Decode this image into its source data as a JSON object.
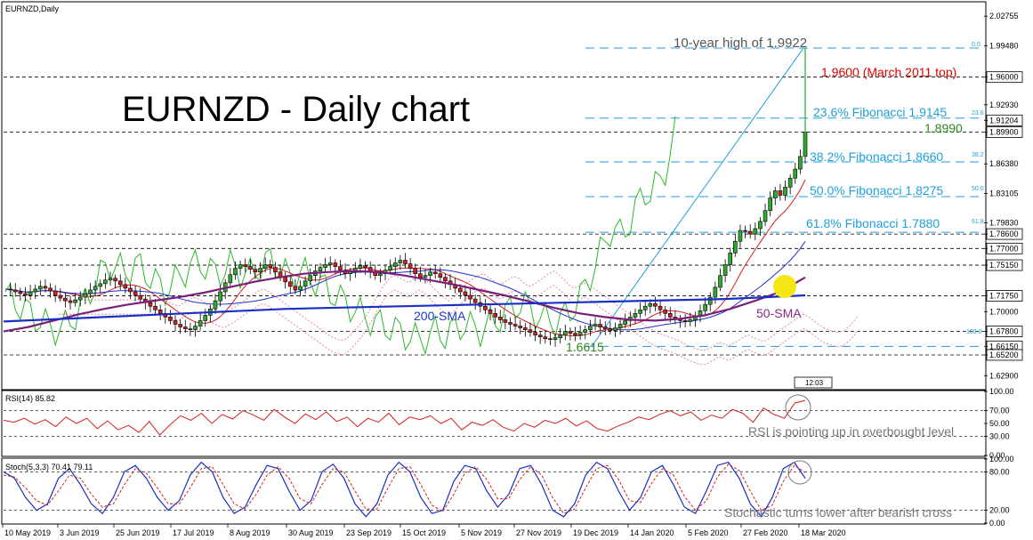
{
  "chart_data": {
    "type": "line",
    "symbol_label": "EURNZD,Daily",
    "title": "EURNZD - Daily chart",
    "price_axis": {
      "ylim": [
        1.6135,
        2.0435
      ],
      "ticks": [
        "2.02755",
        "1.99480",
        "1.96000",
        "1.92930",
        "1.91204",
        "1.89900",
        "1.86380",
        "1.83105",
        "1.79830",
        "1.78600",
        "1.77000",
        "1.75150",
        "1.71750",
        "1.70000",
        "1.67800",
        "1.66150",
        "1.65200",
        "1.62900"
      ],
      "boxed_levels": [
        "1.96000",
        "1.91204",
        "1.89900",
        "1.78600",
        "1.77000",
        "1.75150",
        "1.71750",
        "1.67800",
        "1.66150",
        "1.65200"
      ],
      "dotted_levels": [
        1.96,
        1.899,
        1.786,
        1.77,
        1.7515,
        1.7175,
        1.678,
        1.652
      ]
    },
    "x_ticks": [
      "10 May 2019",
      "3 Jun 2019",
      "25 Jun 2019",
      "17 Jul 2019",
      "8 Aug 2019",
      "30 Aug 2019",
      "23 Sep 2019",
      "15 Oct 2019",
      "5 Nov 2019",
      "27 Nov 2019",
      "19 Dec 2019",
      "14 Jan 2020",
      "5 Feb 2020",
      "27 Feb 2020",
      "18 Mar 2020"
    ],
    "time_badge": "12:03",
    "fibonacci": [
      {
        "ratio": "0.0",
        "price": 1.9922
      },
      {
        "ratio": "23.6",
        "price": 1.9145,
        "label": "23.6% Fibonacci 1.9145"
      },
      {
        "ratio": "38.2",
        "price": 1.866,
        "label": "38.2% Fibonacci 1.8660"
      },
      {
        "ratio": "50.0",
        "price": 1.8275,
        "label": "50.0% Fibonacci 1.8275"
      },
      {
        "ratio": "61.8",
        "price": 1.788,
        "label": "61.8% Fibonacci 1.7880"
      },
      {
        "ratio": "100.0",
        "price": 1.6615
      }
    ],
    "annotations": {
      "high": "10-year high of 1.9922",
      "march_top": "1.9600 (March 2011 top)",
      "level_1899": "1.8990",
      "low": "1.6615",
      "sma200": "200-SMA",
      "sma50": "50-SMA"
    },
    "close_series": [
      1.725,
      1.724,
      1.722,
      1.72,
      1.718,
      1.722,
      1.725,
      1.728,
      1.726,
      1.723,
      1.718,
      1.715,
      1.712,
      1.71,
      1.713,
      1.716,
      1.72,
      1.724,
      1.728,
      1.731,
      1.735,
      1.737,
      1.734,
      1.73,
      1.726,
      1.722,
      1.718,
      1.714,
      1.71,
      1.706,
      1.702,
      1.698,
      1.694,
      1.69,
      1.686,
      1.683,
      1.681,
      1.68,
      1.684,
      1.69,
      1.696,
      1.703,
      1.712,
      1.722,
      1.732,
      1.741,
      1.748,
      1.752,
      1.75,
      1.747,
      1.744,
      1.748,
      1.752,
      1.749,
      1.744,
      1.738,
      1.733,
      1.728,
      1.724,
      1.728,
      1.734,
      1.74,
      1.745,
      1.749,
      1.752,
      1.754,
      1.75,
      1.746,
      1.742,
      1.744,
      1.748,
      1.751,
      1.749,
      1.744,
      1.74,
      1.742,
      1.746,
      1.75,
      1.754,
      1.757,
      1.753,
      1.748,
      1.742,
      1.738,
      1.74,
      1.744,
      1.742,
      1.738,
      1.734,
      1.73,
      1.726,
      1.722,
      1.718,
      1.714,
      1.71,
      1.706,
      1.702,
      1.698,
      1.694,
      1.691,
      1.688,
      1.686,
      1.684,
      1.682,
      1.68,
      1.677,
      1.674,
      1.672,
      1.67,
      1.669,
      1.671,
      1.674,
      1.678,
      1.676,
      1.674,
      1.677,
      1.68,
      1.684,
      1.686,
      1.683,
      1.681,
      1.679,
      1.682,
      1.686,
      1.69,
      1.694,
      1.698,
      1.702,
      1.706,
      1.709,
      1.706,
      1.702,
      1.698,
      1.694,
      1.692,
      1.69,
      1.689,
      1.691,
      1.695,
      1.701,
      1.708,
      1.716,
      1.727,
      1.74,
      1.752,
      1.765,
      1.778,
      1.79,
      1.789,
      1.786,
      1.792,
      1.8,
      1.812,
      1.826,
      1.834,
      1.829,
      1.838,
      1.848,
      1.858,
      1.872,
      1.899
    ],
    "sma50_series": [
      1.678,
      1.683,
      1.69,
      1.697,
      1.703,
      1.708,
      1.712,
      1.716,
      1.721,
      1.727,
      1.733,
      1.738,
      1.742,
      1.744,
      1.745,
      1.744,
      1.74,
      1.735,
      1.73,
      1.724,
      1.718,
      1.711,
      1.704,
      1.698,
      1.694,
      1.691,
      1.69,
      1.692,
      1.696,
      1.703,
      1.712,
      1.722,
      1.738
    ],
    "sma200_series": [
      1.689,
      1.691,
      1.693,
      1.695,
      1.697,
      1.699,
      1.701,
      1.703,
      1.704,
      1.705,
      1.706,
      1.707,
      1.708,
      1.709,
      1.71,
      1.711,
      1.712,
      1.713,
      1.714,
      1.716,
      1.718
    ],
    "rsi": {
      "label": "RSI(14) 85.82",
      "ylim": [
        0,
        100
      ],
      "ticks": [
        "100.00",
        "70.00",
        "50.00",
        "30.00",
        "0.00"
      ],
      "values": [
        55,
        52,
        58,
        49,
        56,
        45,
        60,
        50,
        58,
        42,
        54,
        40,
        47,
        36,
        53,
        32,
        48,
        62,
        55,
        66,
        50,
        64,
        57,
        70,
        63,
        55,
        72,
        60,
        50,
        65,
        56,
        68,
        53,
        60,
        45,
        58,
        52,
        66,
        48,
        60,
        56,
        62,
        50,
        58,
        40,
        52,
        47,
        56,
        44,
        38,
        50,
        44,
        55,
        50,
        58,
        46,
        54,
        42,
        38,
        46,
        52,
        60,
        56,
        64,
        70,
        62,
        68,
        55,
        63,
        58,
        72,
        66,
        52,
        74,
        64,
        58,
        82,
        86
      ]
    },
    "stoch": {
      "label": "Stoch(5,3,3) 70.41 79.11",
      "ylim": [
        0,
        100
      ],
      "ticks": [
        "100.00",
        "80.00",
        "20.00",
        "0.00"
      ],
      "k_values": [
        80,
        70,
        40,
        20,
        30,
        70,
        85,
        60,
        30,
        15,
        40,
        80,
        90,
        70,
        40,
        20,
        35,
        75,
        95,
        80,
        40,
        15,
        25,
        60,
        90,
        85,
        50,
        20,
        35,
        80,
        92,
        70,
        30,
        10,
        30,
        75,
        95,
        80,
        40,
        15,
        20,
        65,
        90,
        85,
        50,
        25,
        45,
        85,
        90,
        60,
        20,
        10,
        30,
        75,
        95,
        85,
        50,
        20,
        40,
        80,
        90,
        60,
        25,
        15,
        50,
        90,
        95,
        70,
        30,
        10,
        40,
        85,
        95,
        70
      ],
      "d_values": [
        75,
        72,
        55,
        35,
        28,
        50,
        75,
        70,
        45,
        25,
        30,
        60,
        85,
        78,
        55,
        30,
        30,
        55,
        85,
        88,
        60,
        30,
        22,
        45,
        75,
        88,
        70,
        38,
        30,
        60,
        85,
        80,
        50,
        22,
        22,
        55,
        85,
        88,
        60,
        28,
        18,
        45,
        78,
        88,
        68,
        38,
        38,
        68,
        88,
        75,
        40,
        15,
        22,
        55,
        85,
        90,
        68,
        35,
        32,
        62,
        85,
        75,
        42,
        20,
        35,
        72,
        92,
        82,
        50,
        20,
        28,
        65,
        90,
        79
      ]
    },
    "notes": {
      "rsi": "RSI is pointing up in overbought level",
      "stoch": "Stochastic turns lower after bearish cross"
    }
  }
}
